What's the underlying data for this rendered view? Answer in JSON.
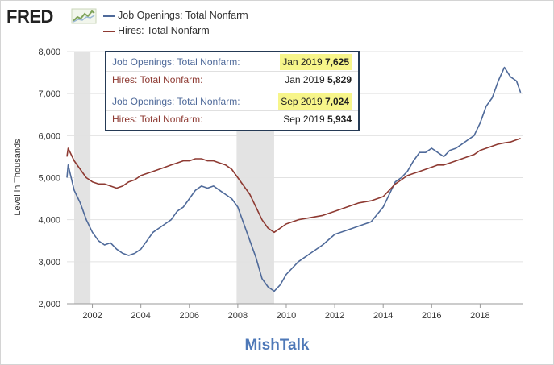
{
  "header": {
    "logo_text": "FRED",
    "logo_icon": "fred-spark-icon"
  },
  "colors": {
    "openings": "#4f6a9a",
    "hires": "#8e3a32",
    "recession": "#e3e3e3",
    "highlight": "#f7f58a",
    "tooltip_border": "#253a55",
    "watermark": "#4f79b8"
  },
  "tooltip": {
    "rows": [
      {
        "label": "Job Openings: Total Nonfarm:",
        "date": "Jan 2019",
        "value": "7,625",
        "series": "openings",
        "highlight": true
      },
      {
        "label": "Hires: Total Nonfarm:",
        "date": "Jan 2019",
        "value": "5,829",
        "series": "hires",
        "highlight": false
      },
      {
        "label": "Job Openings: Total Nonfarm:",
        "date": "Sep 2019",
        "value": "7,024",
        "series": "openings",
        "highlight": true
      },
      {
        "label": "Hires: Total Nonfarm:",
        "date": "Sep 2019",
        "value": "5,934",
        "series": "hires",
        "highlight": false
      }
    ]
  },
  "watermark": "MishTalk",
  "chart_data": {
    "type": "line",
    "title": "",
    "xlabel": "",
    "ylabel": "Level in Thousands",
    "xlim": [
      2000.95,
      2019.75
    ],
    "ylim": [
      2000,
      8000
    ],
    "x_ticks": [
      2002,
      2004,
      2006,
      2008,
      2010,
      2012,
      2014,
      2016,
      2018
    ],
    "x_tick_labels": [
      "2002",
      "2004",
      "2006",
      "2008",
      "2010",
      "2012",
      "2014",
      "2016",
      "2018"
    ],
    "y_ticks": [
      2000,
      3000,
      4000,
      5000,
      6000,
      7000,
      8000
    ],
    "y_tick_labels": [
      "2,000",
      "3,000",
      "4,000",
      "5,000",
      "6,000",
      "7,000",
      "8,000"
    ],
    "grid": "horizontal",
    "legend_placement": "top",
    "recessions": [
      [
        2001.25,
        2001.92
      ],
      [
        2007.95,
        2009.5
      ]
    ],
    "series": [
      {
        "key": "openings",
        "name": "Job Openings: Total Nonfarm",
        "color": "#4f6a9a",
        "x": [
          2000.95,
          2001.0,
          2001.25,
          2001.5,
          2001.75,
          2002.0,
          2002.25,
          2002.5,
          2002.75,
          2003.0,
          2003.25,
          2003.5,
          2003.75,
          2004.0,
          2004.25,
          2004.5,
          2004.75,
          2005.0,
          2005.25,
          2005.5,
          2005.75,
          2006.0,
          2006.25,
          2006.5,
          2006.75,
          2007.0,
          2007.25,
          2007.5,
          2007.75,
          2008.0,
          2008.25,
          2008.5,
          2008.75,
          2009.0,
          2009.25,
          2009.5,
          2009.75,
          2010.0,
          2010.5,
          2011.0,
          2011.5,
          2012.0,
          2012.5,
          2013.0,
          2013.5,
          2014.0,
          2014.25,
          2014.5,
          2014.75,
          2015.0,
          2015.25,
          2015.5,
          2015.75,
          2016.0,
          2016.25,
          2016.5,
          2016.75,
          2017.0,
          2017.25,
          2017.5,
          2017.75,
          2018.0,
          2018.25,
          2018.5,
          2018.75,
          2019.0,
          2019.25,
          2019.5,
          2019.67
        ],
        "values": [
          5000,
          5300,
          4700,
          4400,
          4000,
          3700,
          3500,
          3400,
          3450,
          3300,
          3200,
          3150,
          3200,
          3300,
          3500,
          3700,
          3800,
          3900,
          4000,
          4200,
          4300,
          4500,
          4700,
          4800,
          4750,
          4800,
          4700,
          4600,
          4500,
          4300,
          3900,
          3500,
          3100,
          2600,
          2400,
          2300,
          2450,
          2700,
          3000,
          3200,
          3400,
          3650,
          3750,
          3850,
          3950,
          4300,
          4600,
          4900,
          5000,
          5150,
          5400,
          5600,
          5600,
          5700,
          5600,
          5500,
          5650,
          5700,
          5800,
          5900,
          6000,
          6300,
          6700,
          6900,
          7300,
          7625,
          7400,
          7300,
          7024
        ]
      },
      {
        "key": "hires",
        "name": "Hires: Total Nonfarm",
        "color": "#8e3a32",
        "x": [
          2000.95,
          2001.0,
          2001.25,
          2001.5,
          2001.75,
          2002.0,
          2002.25,
          2002.5,
          2002.75,
          2003.0,
          2003.25,
          2003.5,
          2003.75,
          2004.0,
          2004.25,
          2004.5,
          2004.75,
          2005.0,
          2005.25,
          2005.5,
          2005.75,
          2006.0,
          2006.25,
          2006.5,
          2006.75,
          2007.0,
          2007.25,
          2007.5,
          2007.75,
          2008.0,
          2008.25,
          2008.5,
          2008.75,
          2009.0,
          2009.25,
          2009.5,
          2009.75,
          2010.0,
          2010.5,
          2011.0,
          2011.5,
          2012.0,
          2012.5,
          2013.0,
          2013.5,
          2014.0,
          2014.25,
          2014.5,
          2014.75,
          2015.0,
          2015.25,
          2015.5,
          2015.75,
          2016.0,
          2016.25,
          2016.5,
          2016.75,
          2017.0,
          2017.25,
          2017.5,
          2017.75,
          2018.0,
          2018.25,
          2018.5,
          2018.75,
          2019.0,
          2019.25,
          2019.5,
          2019.67
        ],
        "values": [
          5500,
          5700,
          5400,
          5200,
          5000,
          4900,
          4850,
          4850,
          4800,
          4750,
          4800,
          4900,
          4950,
          5050,
          5100,
          5150,
          5200,
          5250,
          5300,
          5350,
          5400,
          5400,
          5450,
          5450,
          5400,
          5400,
          5350,
          5300,
          5200,
          5000,
          4800,
          4600,
          4300,
          4000,
          3800,
          3700,
          3800,
          3900,
          4000,
          4050,
          4100,
          4200,
          4300,
          4400,
          4450,
          4550,
          4700,
          4850,
          4950,
          5050,
          5100,
          5150,
          5200,
          5250,
          5300,
          5300,
          5350,
          5400,
          5450,
          5500,
          5550,
          5650,
          5700,
          5750,
          5800,
          5829,
          5850,
          5900,
          5934
        ]
      }
    ]
  }
}
